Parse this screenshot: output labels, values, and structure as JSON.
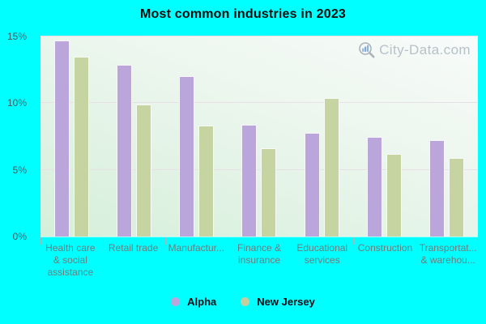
{
  "title": "Most common industries in 2023",
  "watermark": {
    "text": "City-Data.com"
  },
  "legend": {
    "items": [
      {
        "label": "Alpha",
        "color": "#bba6dc"
      },
      {
        "label": "New Jersey",
        "color": "#c3cf9e"
      }
    ]
  },
  "chart_data": {
    "type": "bar",
    "title": "Most common industries in 2023",
    "categories": [
      "Health care & social assistance",
      "Retail trade",
      "Manufactur...",
      "Finance & insurance",
      "Educational services",
      "Construction",
      "Transportat... & warehou..."
    ],
    "category_label_lines": [
      [
        "Health care",
        "& social",
        "assistance"
      ],
      [
        "Retail trade"
      ],
      [
        "Manufactur..."
      ],
      [
        "Finance &",
        "insurance"
      ],
      [
        "Educational",
        "services"
      ],
      [
        "Construction"
      ],
      [
        "Transportat...",
        "& warehou..."
      ]
    ],
    "series": [
      {
        "name": "Alpha",
        "color": "#bba6dc",
        "values": [
          14.7,
          12.9,
          12.0,
          8.4,
          7.8,
          7.5,
          7.2
        ]
      },
      {
        "name": "New Jersey",
        "color": "#c6d4a2",
        "values": [
          13.5,
          9.9,
          8.3,
          6.6,
          10.4,
          6.2,
          5.9
        ]
      }
    ],
    "xlabel": "",
    "ylabel": "",
    "ylim": [
      0,
      15
    ],
    "yticks": [
      "0%",
      "5%",
      "10%",
      "15%"
    ],
    "gridline_values": [
      5,
      10,
      15
    ],
    "grid": "horizontal",
    "legend_position": "bottom"
  },
  "colors": {
    "page_background": "#00ffff",
    "plot_gradient_top": "#f8fbfa",
    "plot_gradient_bottom": "#d5efda",
    "gridline": "#e9dfe6",
    "alpha_series": "#bba6dc",
    "new_jersey_series": "#c6d4a2",
    "title_text": "#0d0d0d",
    "y_axis_text": "#4c5a60",
    "x_axis_text": "#6b7e7e",
    "watermark_text": "#b7c1c9"
  }
}
